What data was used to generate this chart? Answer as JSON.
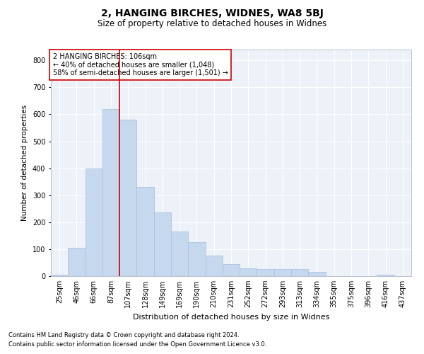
{
  "title": "2, HANGING BIRCHES, WIDNES, WA8 5BJ",
  "subtitle": "Size of property relative to detached houses in Widnes",
  "xlabel": "Distribution of detached houses by size in Widnes",
  "ylabel": "Number of detached properties",
  "footnote1": "Contains HM Land Registry data © Crown copyright and database right 2024.",
  "footnote2": "Contains public sector information licensed under the Open Government Licence v3.0.",
  "annotation_line1": "2 HANGING BIRCHES: 106sqm",
  "annotation_line2": "← 40% of detached houses are smaller (1,048)",
  "annotation_line3": "58% of semi-detached houses are larger (1,501) →",
  "bar_color": "#c5d8ee",
  "bar_edge_color": "#aac4e0",
  "vline_color": "#cc0000",
  "background_color": "#edf2f9",
  "grid_color": "#ffffff",
  "categories": [
    "25sqm",
    "46sqm",
    "66sqm",
    "87sqm",
    "107sqm",
    "128sqm",
    "149sqm",
    "169sqm",
    "190sqm",
    "210sqm",
    "231sqm",
    "252sqm",
    "272sqm",
    "293sqm",
    "313sqm",
    "334sqm",
    "355sqm",
    "375sqm",
    "396sqm",
    "416sqm",
    "437sqm"
  ],
  "values": [
    5,
    105,
    400,
    620,
    580,
    330,
    235,
    165,
    125,
    75,
    45,
    30,
    25,
    25,
    25,
    15,
    0,
    0,
    0,
    5,
    0
  ],
  "vline_x": 3.5,
  "ylim": [
    0,
    840
  ],
  "yticks": [
    0,
    100,
    200,
    300,
    400,
    500,
    600,
    700,
    800
  ],
  "title_fontsize": 10,
  "subtitle_fontsize": 8.5,
  "xlabel_fontsize": 8,
  "ylabel_fontsize": 7.5,
  "tick_fontsize": 7,
  "annotation_fontsize": 7,
  "footnote_fontsize": 6
}
